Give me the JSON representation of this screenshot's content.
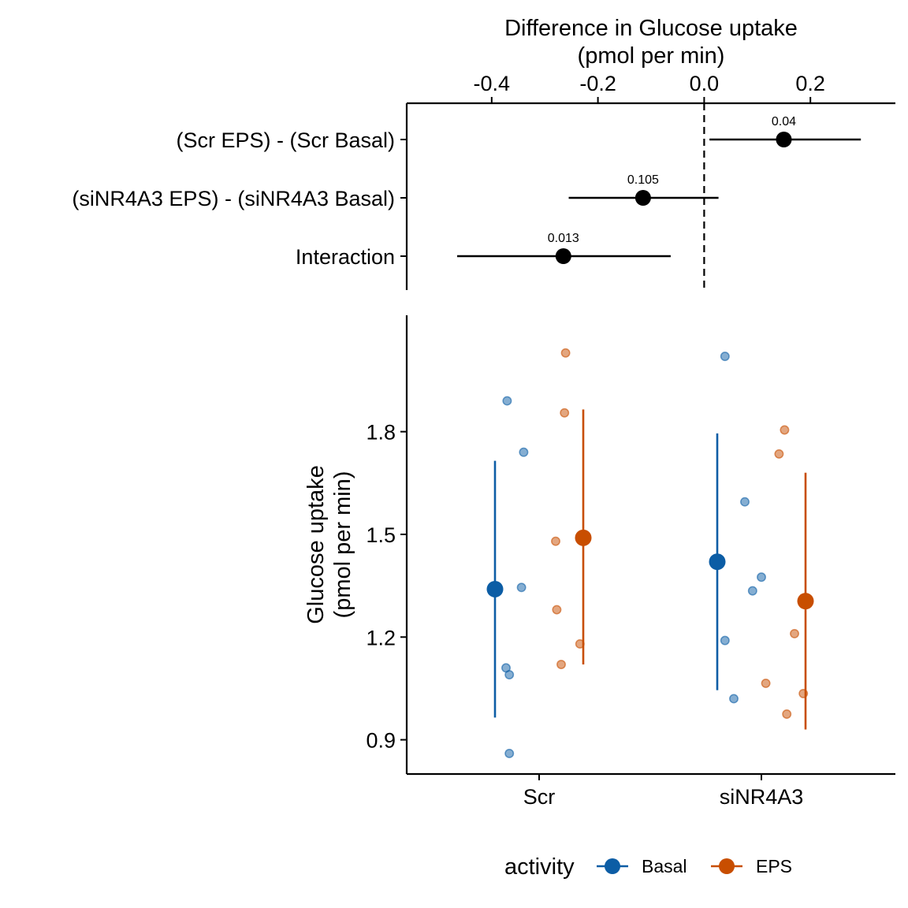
{
  "chart_data": [
    {
      "type": "forest",
      "xlabel_line1": "Difference in Glucose uptake",
      "xlabel_line2": "(pmol per min)",
      "xlim": [
        -0.56,
        0.36
      ],
      "x_ticks": [
        -0.4,
        -0.2,
        0.0,
        0.2
      ],
      "x_tick_labels": [
        "-0.4",
        "-0.2",
        "0.0",
        "0.2"
      ],
      "reference_line": 0.0,
      "rows": [
        {
          "label": "(Scr EPS) - (Scr Basal)",
          "estimate": 0.15,
          "lower": 0.01,
          "upper": 0.295,
          "p_label": "0.04"
        },
        {
          "label": "(siNR4A3 EPS) - (siNR4A3 Basal)",
          "estimate": -0.115,
          "lower": -0.255,
          "upper": 0.027,
          "p_label": "0.105"
        },
        {
          "label": "Interaction",
          "estimate": -0.265,
          "lower": -0.465,
          "upper": -0.063,
          "p_label": "0.013"
        }
      ]
    },
    {
      "type": "scatter",
      "ylabel_line1": "Glucose uptake",
      "ylabel_line2": "(pmol per min)",
      "ylim": [
        0.8,
        2.14
      ],
      "y_ticks": [
        0.9,
        1.2,
        1.5,
        1.8
      ],
      "y_tick_labels": [
        "0.9",
        "1.2",
        "1.5",
        "1.8"
      ],
      "categories": [
        "Scr",
        "siNR4A3"
      ],
      "legend_title": "activity",
      "legend_position": "bottom",
      "series": [
        {
          "name": "Basal",
          "color": "#0C5DA5",
          "summary": [
            {
              "category": "Scr",
              "mean": 1.34,
              "lower": 0.965,
              "upper": 1.715
            },
            {
              "category": "siNR4A3",
              "mean": 1.42,
              "lower": 1.045,
              "upper": 1.795
            }
          ],
          "points": [
            {
              "category": "Scr",
              "jitter": -0.29,
              "value": 1.89
            },
            {
              "category": "Scr",
              "jitter": -0.14,
              "value": 1.74
            },
            {
              "category": "Scr",
              "jitter": -0.16,
              "value": 1.345
            },
            {
              "category": "Scr",
              "jitter": -0.3,
              "value": 1.11
            },
            {
              "category": "Scr",
              "jitter": -0.27,
              "value": 1.09
            },
            {
              "category": "Scr",
              "jitter": -0.27,
              "value": 0.86
            },
            {
              "category": "siNR4A3",
              "jitter": -0.33,
              "value": 2.02
            },
            {
              "category": "siNR4A3",
              "jitter": -0.15,
              "value": 1.595
            },
            {
              "category": "siNR4A3",
              "jitter": 0.0,
              "value": 1.375
            },
            {
              "category": "siNR4A3",
              "jitter": -0.08,
              "value": 1.335
            },
            {
              "category": "siNR4A3",
              "jitter": -0.33,
              "value": 1.19
            },
            {
              "category": "siNR4A3",
              "jitter": -0.25,
              "value": 1.02
            }
          ]
        },
        {
          "name": "EPS",
          "color": "#C84E00",
          "summary": [
            {
              "category": "Scr",
              "mean": 1.49,
              "lower": 1.12,
              "upper": 1.865
            },
            {
              "category": "siNR4A3",
              "mean": 1.305,
              "lower": 0.93,
              "upper": 1.68
            }
          ],
          "points": [
            {
              "category": "Scr",
              "jitter": 0.24,
              "value": 2.03
            },
            {
              "category": "Scr",
              "jitter": 0.23,
              "value": 1.855
            },
            {
              "category": "Scr",
              "jitter": 0.15,
              "value": 1.48
            },
            {
              "category": "Scr",
              "jitter": 0.16,
              "value": 1.28
            },
            {
              "category": "Scr",
              "jitter": 0.37,
              "value": 1.18
            },
            {
              "category": "Scr",
              "jitter": 0.2,
              "value": 1.12
            },
            {
              "category": "siNR4A3",
              "jitter": 0.21,
              "value": 1.805
            },
            {
              "category": "siNR4A3",
              "jitter": 0.16,
              "value": 1.735
            },
            {
              "category": "siNR4A3",
              "jitter": 0.3,
              "value": 1.21
            },
            {
              "category": "siNR4A3",
              "jitter": 0.04,
              "value": 1.065
            },
            {
              "category": "siNR4A3",
              "jitter": 0.38,
              "value": 1.035
            },
            {
              "category": "siNR4A3",
              "jitter": 0.23,
              "value": 0.975
            }
          ]
        }
      ]
    }
  ]
}
